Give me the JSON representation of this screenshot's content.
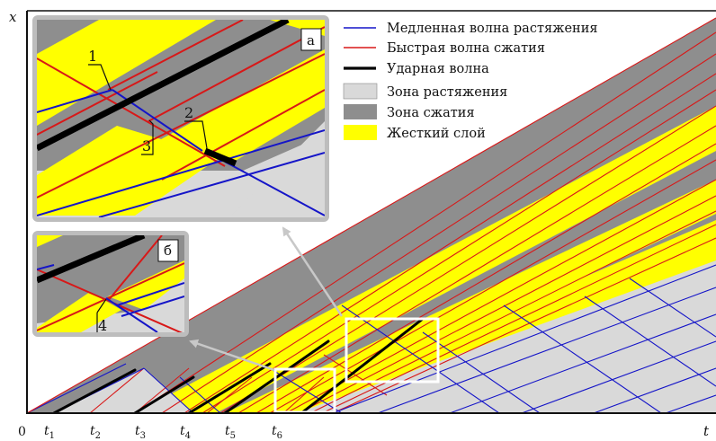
{
  "axes": {
    "x_label": "x",
    "t_label": "t",
    "origin_label": "0"
  },
  "ticks": [
    {
      "main": "t",
      "sub": "1"
    },
    {
      "main": "t",
      "sub": "2"
    },
    {
      "main": "t",
      "sub": "3"
    },
    {
      "main": "t",
      "sub": "4"
    },
    {
      "main": "t",
      "sub": "5"
    },
    {
      "main": "t",
      "sub": "6"
    }
  ],
  "legend": {
    "items": [
      {
        "label": "Медленная волна растяжения",
        "kind": "line",
        "color": "#1515c8"
      },
      {
        "label": "Быстрая волна сжатия",
        "kind": "line",
        "color": "#d81818"
      },
      {
        "label": "Ударная волна",
        "kind": "line",
        "color": "#000000"
      },
      {
        "label": "Зона растяжения",
        "kind": "swatch",
        "color": "#d9d9d9"
      },
      {
        "label": "Зона сжатия",
        "kind": "swatch",
        "color": "#8e8e8e"
      },
      {
        "label": "Жесткий слой",
        "kind": "swatch",
        "color": "#ffff00"
      }
    ]
  },
  "insets": {
    "a": {
      "letter": "а",
      "labels": [
        "1",
        "2",
        "3"
      ]
    },
    "b": {
      "letter": "б",
      "labels": [
        "4"
      ]
    }
  },
  "colors": {
    "tension": "#d9d9d9",
    "compression": "#8e8e8e",
    "rigid": "#ffff00",
    "slow_wave": "#1515c8",
    "fast_wave": "#d81818",
    "shock": "#000000",
    "panel": "#bdbdbd"
  }
}
